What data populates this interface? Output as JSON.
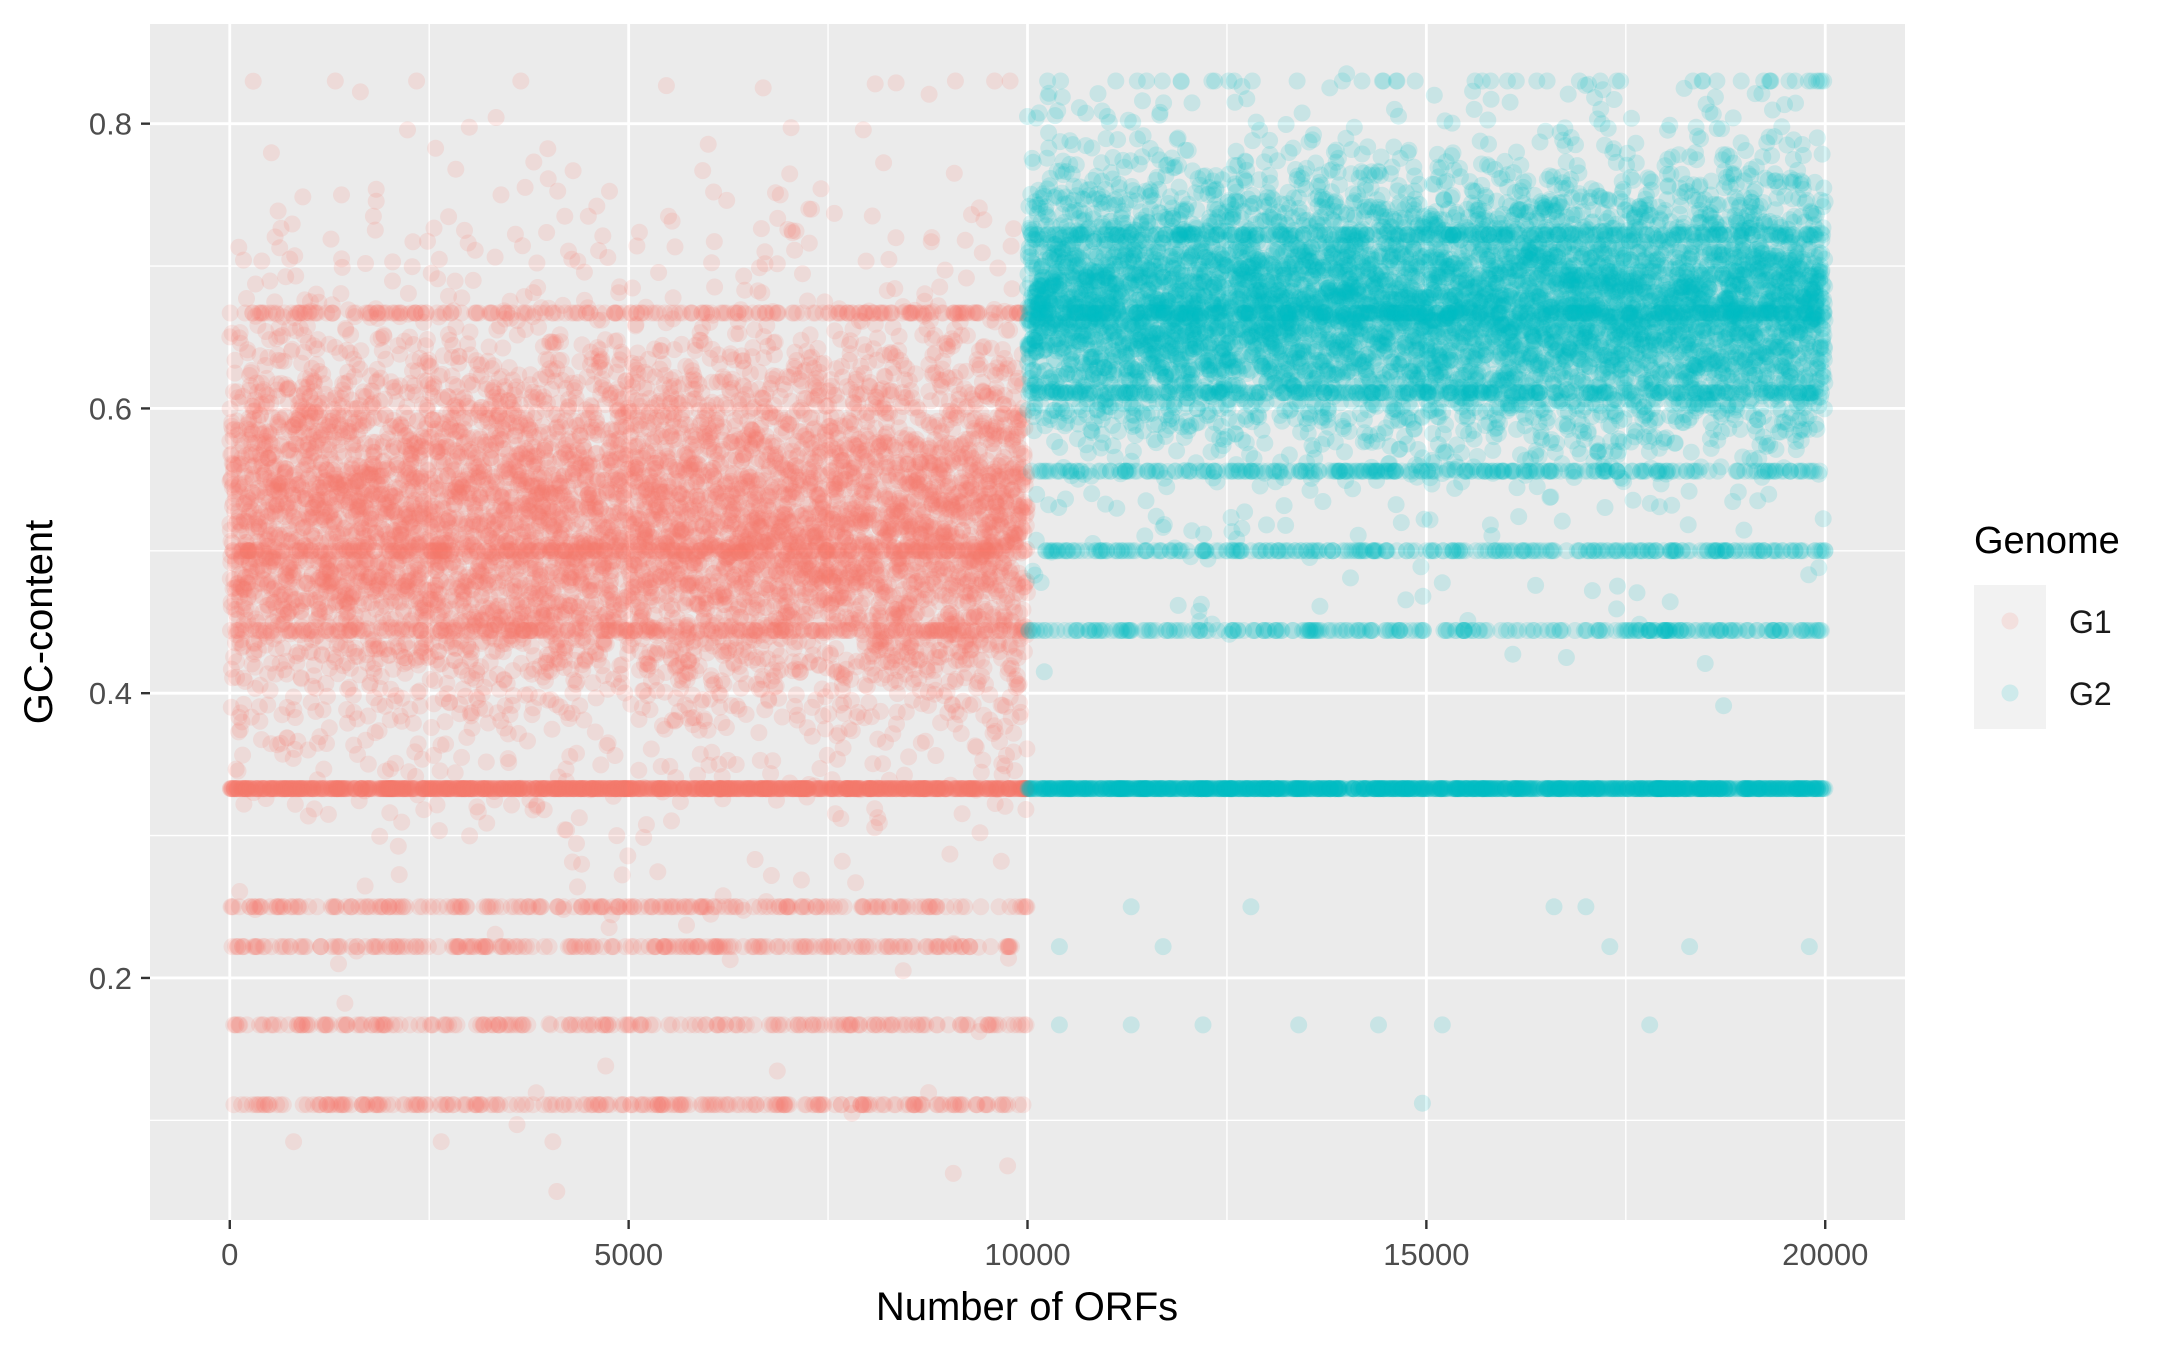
{
  "chart_data": {
    "type": "scatter",
    "title": "",
    "xlabel": "Number of ORFs",
    "ylabel": "GC-content",
    "xlim": [
      -1000,
      21000
    ],
    "ylim": [
      0.03,
      0.87
    ],
    "x_ticks": [
      0,
      5000,
      10000,
      15000,
      20000
    ],
    "x_tick_labels": [
      "0",
      "5000",
      "10000",
      "15000",
      "20000"
    ],
    "y_ticks": [
      0.2,
      0.4,
      0.6,
      0.8
    ],
    "y_tick_labels": [
      "0.2",
      "0.4",
      "0.6",
      "0.8"
    ],
    "grid": true,
    "legend": {
      "title": "Genome",
      "placement": "right",
      "entries": [
        "G1",
        "G2"
      ]
    },
    "point_alpha": 0.15,
    "series": [
      {
        "name": "G1",
        "color": "#F8766D",
        "x_range": [
          0,
          9999
        ],
        "n_points": 10000,
        "mean_gc": 0.52,
        "sd_gc": 0.065,
        "preferred_levels": [
          0.333,
          0.5,
          0.444,
          0.667,
          0.222,
          0.167,
          0.111,
          0.25
        ],
        "highlighted_points": [
          {
            "x": 4100,
            "y": 0.05
          },
          {
            "x": 800,
            "y": 0.085
          },
          {
            "x": 2650,
            "y": 0.085
          },
          {
            "x": 4050,
            "y": 0.085
          },
          {
            "x": 9750,
            "y": 0.068
          },
          {
            "x": 3600,
            "y": 0.097
          },
          {
            "x": 7800,
            "y": 0.105
          },
          {
            "x": 1400,
            "y": 0.75
          },
          {
            "x": 3400,
            "y": 0.75
          },
          {
            "x": 6900,
            "y": 0.75
          },
          {
            "x": 1800,
            "y": 0.735
          },
          {
            "x": 4200,
            "y": 0.735
          },
          {
            "x": 5500,
            "y": 0.735
          },
          {
            "x": 8800,
            "y": 0.72
          }
        ]
      },
      {
        "name": "G2",
        "color": "#00BFC4",
        "x_range": [
          10000,
          19999
        ],
        "n_points": 10000,
        "mean_gc": 0.672,
        "sd_gc": 0.045,
        "preferred_levels": [
          0.333,
          0.5,
          0.556,
          0.444,
          0.667,
          0.722,
          0.611
        ],
        "highlighted_points": [
          {
            "x": 14000,
            "y": 0.835
          },
          {
            "x": 15100,
            "y": 0.82
          },
          {
            "x": 12600,
            "y": 0.815
          },
          {
            "x": 15600,
            "y": 0.81
          },
          {
            "x": 14600,
            "y": 0.81
          },
          {
            "x": 10000,
            "y": 0.805
          },
          {
            "x": 11000,
            "y": 0.805
          },
          {
            "x": 17200,
            "y": 0.8
          },
          {
            "x": 19900,
            "y": 0.79
          },
          {
            "x": 14950,
            "y": 0.112
          },
          {
            "x": 10400,
            "y": 0.167
          },
          {
            "x": 11300,
            "y": 0.167
          },
          {
            "x": 12200,
            "y": 0.167
          },
          {
            "x": 13400,
            "y": 0.167
          },
          {
            "x": 14400,
            "y": 0.167
          },
          {
            "x": 15200,
            "y": 0.167
          },
          {
            "x": 17800,
            "y": 0.167
          },
          {
            "x": 10400,
            "y": 0.222
          },
          {
            "x": 11700,
            "y": 0.222
          },
          {
            "x": 17300,
            "y": 0.222
          },
          {
            "x": 18300,
            "y": 0.222
          },
          {
            "x": 19800,
            "y": 0.222
          },
          {
            "x": 11300,
            "y": 0.25
          },
          {
            "x": 12800,
            "y": 0.25
          },
          {
            "x": 16600,
            "y": 0.25
          },
          {
            "x": 17000,
            "y": 0.25
          }
        ]
      }
    ]
  }
}
